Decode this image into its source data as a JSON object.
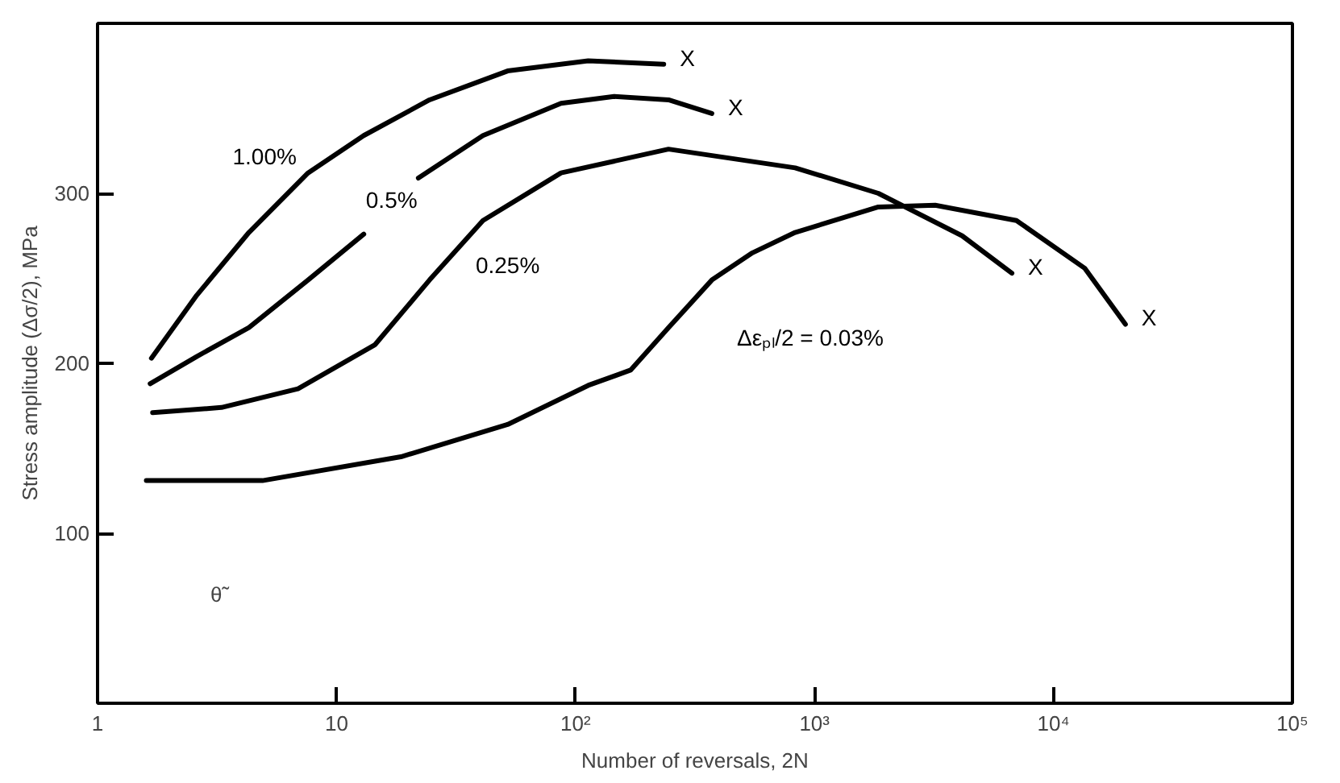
{
  "chart_data": {
    "type": "line",
    "xlabel": "Number of reversals, 2N",
    "ylabel": "Stress amplitude (Δσ/2), MPa",
    "log": "x",
    "grid": false,
    "xlim": [
      1,
      100000
    ],
    "ylim": [
      0,
      400
    ],
    "xticks": [
      1,
      10,
      {
        "value": 100,
        "label": "10²"
      },
      {
        "value": 1000,
        "label": "10³"
      },
      {
        "value": 10000,
        "label": "10⁴"
      },
      {
        "value": 100000,
        "label": "10⁵"
      }
    ],
    "yticks": [
      100,
      200,
      300
    ],
    "series": [
      {
        "name": "1.00%",
        "color": "#000000",
        "x": [
          1.68,
          2.6,
          4.3,
          7.6,
          13,
          24.5,
          52,
          113,
          234
        ],
        "values": [
          203,
          240,
          277,
          312,
          334,
          355,
          372,
          378,
          376
        ]
      },
      {
        "name": "0.5%",
        "color": "#000000",
        "x": [
          1.66,
          2.6,
          4.3,
          7.6,
          13,
          17,
          22,
          41,
          87,
          145,
          245,
          372
        ],
        "values": [
          188,
          204,
          221,
          249,
          276,
          null,
          309,
          334,
          353,
          357,
          355,
          347
        ]
      },
      {
        "name": "0.25%",
        "color": "#000000",
        "x": [
          1.7,
          3.3,
          6.9,
          14.5,
          24.5,
          41,
          87,
          245,
          830,
          1850,
          4150,
          6700
        ],
        "values": [
          171,
          174,
          185,
          211,
          249,
          284,
          312,
          326,
          315,
          300,
          275,
          253
        ]
      },
      {
        "name": "Δεₚₗ/2 = 0.03%",
        "color": "#000000",
        "x": [
          1.6,
          4.9,
          18.6,
          52,
          113,
          170,
          245,
          372,
          550,
          830,
          1850,
          3200,
          7000,
          13500,
          20000
        ],
        "values": [
          131,
          131,
          145,
          164,
          187,
          196,
          221,
          249,
          265,
          277,
          292,
          293,
          284,
          256,
          223
        ]
      }
    ],
    "annotations": [
      "X",
      "X",
      "X",
      "X",
      "θ˜"
    ]
  }
}
